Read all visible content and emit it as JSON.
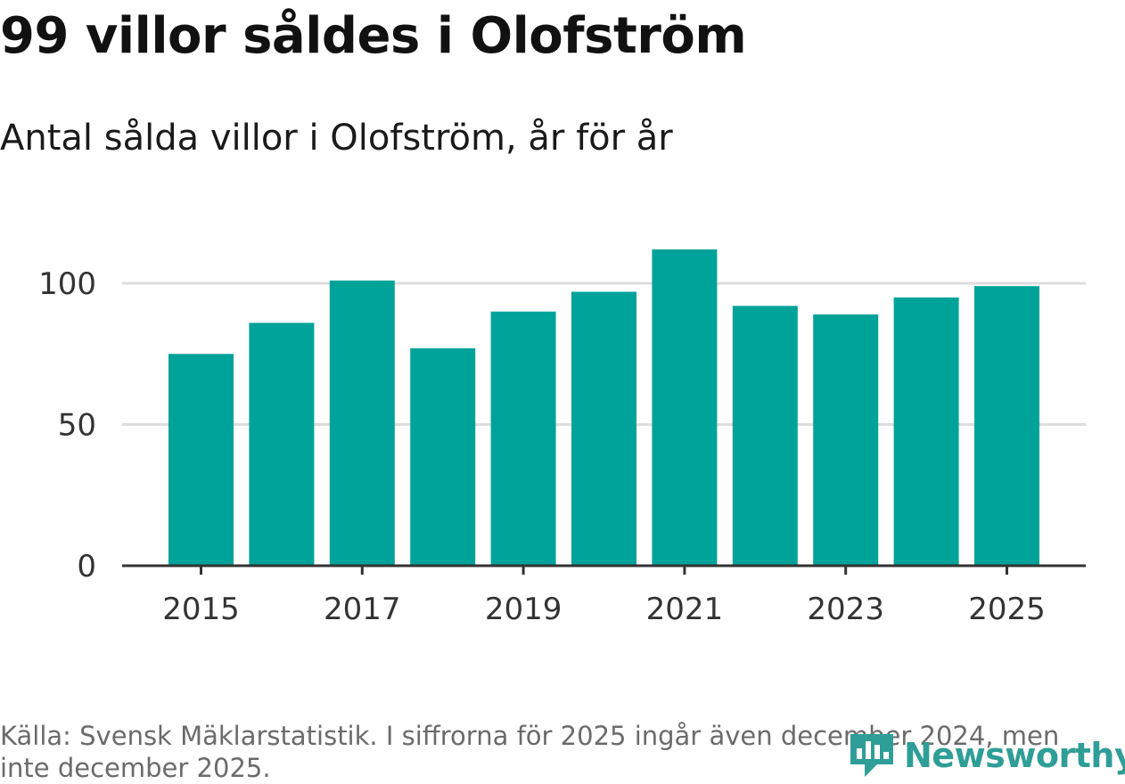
{
  "header": {
    "title": "99 villor såldes i Olofström",
    "subtitle": "Antal sålda villor i Olofström, år för år"
  },
  "chart_data": {
    "type": "bar",
    "title": "99 villor såldes i Olofström",
    "subtitle": "Antal sålda villor i Olofström, år för år",
    "xlabel": "",
    "ylabel": "",
    "categories": [
      2015,
      2016,
      2017,
      2018,
      2019,
      2020,
      2021,
      2022,
      2023,
      2024,
      2025
    ],
    "values": [
      75,
      86,
      101,
      77,
      90,
      97,
      112,
      92,
      89,
      95,
      99
    ],
    "ylim": [
      0,
      120
    ],
    "yticks": [
      0,
      50,
      100
    ],
    "xtick_labels": [
      "2015",
      "2017",
      "2019",
      "2021",
      "2023",
      "2025"
    ],
    "grid": true,
    "bar_color": "#00a39a"
  },
  "footer": {
    "source": "Källa: Svensk Mäklarstatistik. I siffrorna för 2025 ingår även december 2024, men inte december 2025.",
    "logo_text": "Newsworthy"
  },
  "colors": {
    "bar": "#00a39a",
    "grid": "#dddddd",
    "axis": "#333333",
    "logo": "#2e9e97"
  }
}
